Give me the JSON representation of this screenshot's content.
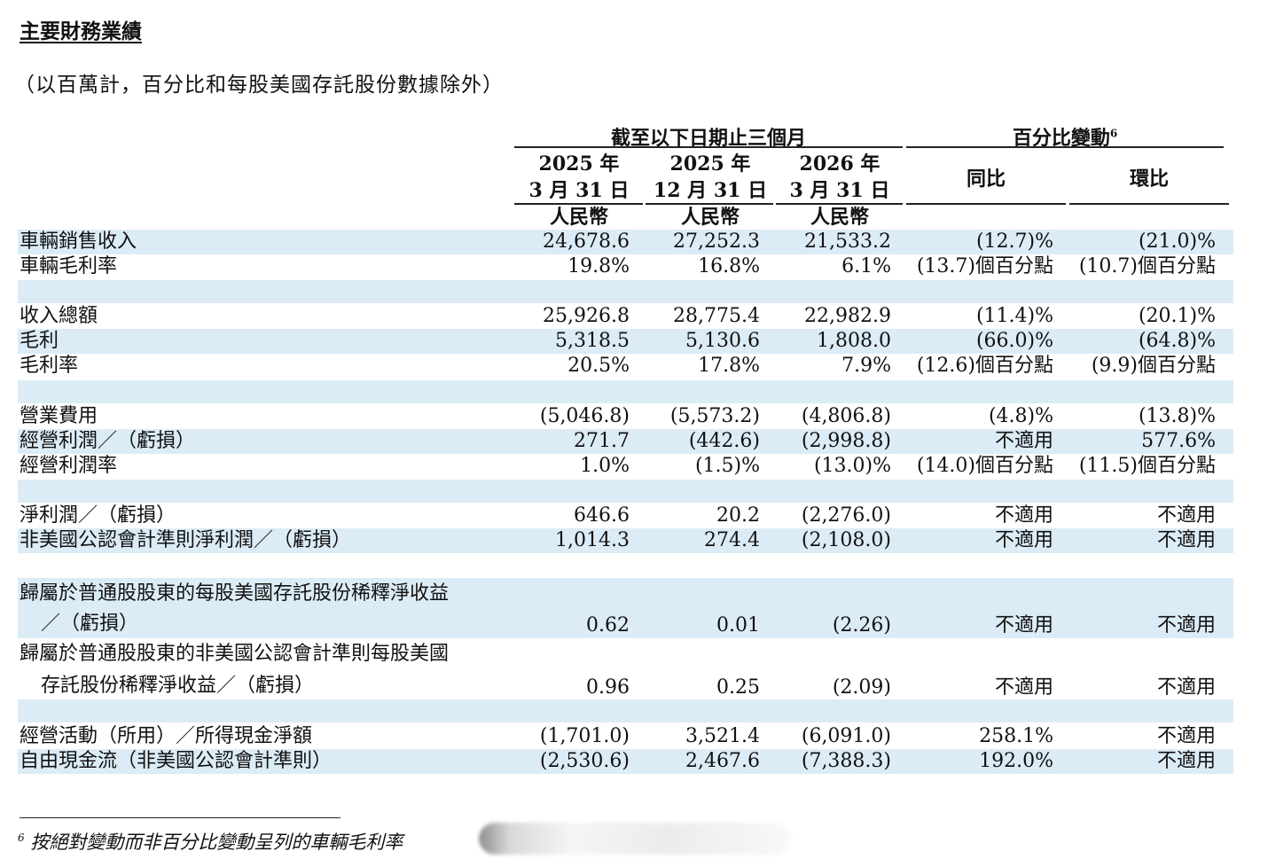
{
  "title": "主要財務業績",
  "subtitle": "（以百萬計，百分比和每股美國存託股份數據除外）",
  "header": {
    "period_group": "截至以下日期止三個月",
    "change_group": "百分比變動",
    "change_sup": "6",
    "col1": {
      "year": "2025 年",
      "date": "3 月 31 日",
      "currency": "人民幣"
    },
    "col2": {
      "year": "2025 年",
      "date": "12 月 31 日",
      "currency": "人民幣"
    },
    "col3": {
      "year": "2026 年",
      "date": "3 月 31 日",
      "currency": "人民幣"
    },
    "yoy": "同比",
    "qoq": "環比"
  },
  "rows": [
    {
      "label": "車輛銷售收入",
      "v": [
        "24,678.6",
        "27,252.3",
        "21,533.2",
        "(12.7)%",
        "(21.0)%"
      ]
    },
    {
      "label": "車輛毛利率",
      "v": [
        "19.8%",
        "16.8%",
        "6.1%",
        "(13.7)個百分點",
        "(10.7)個百分點"
      ]
    },
    {
      "label": "收入總額",
      "v": [
        "25,926.8",
        "28,775.4",
        "22,982.9",
        "(11.4)%",
        "(20.1)%"
      ]
    },
    {
      "label": "毛利",
      "v": [
        "5,318.5",
        "5,130.6",
        "1,808.0",
        "(66.0)%",
        "(64.8)%"
      ]
    },
    {
      "label": "毛利率",
      "v": [
        "20.5%",
        "17.8%",
        "7.9%",
        "(12.6)個百分點",
        "(9.9)個百分點"
      ]
    },
    {
      "label": "營業費用",
      "v": [
        "(5,046.8)",
        "(5,573.2)",
        "(4,806.8)",
        "(4.8)%",
        "(13.8)%"
      ]
    },
    {
      "label": "經營利潤／（虧損）",
      "v": [
        "271.7",
        "(442.6)",
        "(2,998.8)",
        "不適用",
        "577.6%"
      ]
    },
    {
      "label": "經營利潤率",
      "v": [
        "1.0%",
        "(1.5)%",
        "(13.0)%",
        "(14.0)個百分點",
        "(11.5)個百分點"
      ]
    },
    {
      "label": "淨利潤／（虧損）",
      "v": [
        "646.6",
        "20.2",
        "(2,276.0)",
        "不適用",
        "不適用"
      ]
    },
    {
      "label": "非美國公認會計準則淨利潤／（虧損）",
      "v": [
        "1,014.3",
        "274.4",
        "(2,108.0)",
        "不適用",
        "不適用"
      ]
    },
    {
      "label": "歸屬於普通股股東的每股美國存託股份稀釋淨收益",
      "label2": "／（虧損）",
      "v": [
        "0.62",
        "0.01",
        "(2.26)",
        "不適用",
        "不適用"
      ]
    },
    {
      "label": "歸屬於普通股股東的非美國公認會計準則每股美國",
      "label2": "存託股份稀釋淨收益／（虧損）",
      "v": [
        "0.96",
        "0.25",
        "(2.09)",
        "不適用",
        "不適用"
      ]
    },
    {
      "label": "經營活動（所用）／所得現金淨額",
      "v": [
        "(1,701.0)",
        "3,521.4",
        "(6,091.0)",
        "258.1%",
        "不適用"
      ]
    },
    {
      "label": "自由現金流（非美國公認會計準則）",
      "v": [
        "(2,530.6)",
        "2,467.6",
        "(7,388.3)",
        "192.0%",
        "不適用"
      ]
    }
  ],
  "footnote": {
    "sup": "6",
    "text": "按絕對變動而非百分比變動呈列的車輛毛利率"
  }
}
